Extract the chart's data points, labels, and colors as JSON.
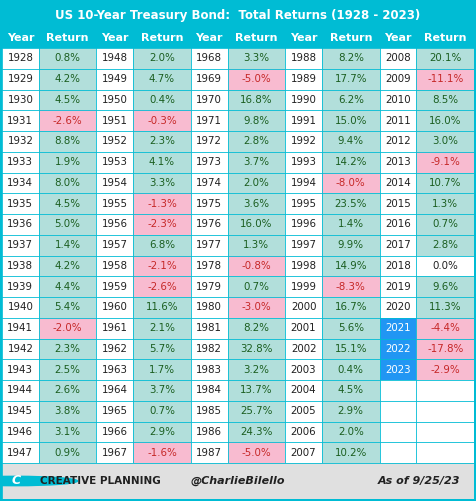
{
  "title": "US 10-Year Treasury Bond:  Total Returns (1928 - 2023)",
  "columns": [
    {
      "years": [
        1928,
        1929,
        1930,
        1931,
        1932,
        1933,
        1934,
        1935,
        1936,
        1937,
        1938,
        1939,
        1940,
        1941,
        1942,
        1943,
        1944,
        1945,
        1946,
        1947
      ],
      "returns": [
        0.8,
        4.2,
        4.5,
        -2.6,
        8.8,
        1.9,
        8.0,
        4.5,
        5.0,
        1.4,
        4.2,
        4.4,
        5.4,
        -2.0,
        2.3,
        2.5,
        2.6,
        3.8,
        3.1,
        0.9
      ]
    },
    {
      "years": [
        1948,
        1949,
        1950,
        1951,
        1952,
        1953,
        1954,
        1955,
        1956,
        1957,
        1958,
        1959,
        1960,
        1961,
        1962,
        1963,
        1964,
        1965,
        1966,
        1967
      ],
      "returns": [
        2.0,
        4.7,
        0.4,
        -0.3,
        2.3,
        4.1,
        3.3,
        -1.3,
        -2.3,
        6.8,
        -2.1,
        -2.6,
        11.6,
        2.1,
        5.7,
        1.7,
        3.7,
        0.7,
        2.9,
        -1.6
      ]
    },
    {
      "years": [
        1968,
        1969,
        1970,
        1971,
        1972,
        1973,
        1974,
        1975,
        1976,
        1977,
        1978,
        1979,
        1980,
        1981,
        1982,
        1983,
        1984,
        1985,
        1986,
        1987
      ],
      "returns": [
        3.3,
        -5.0,
        16.8,
        9.8,
        2.8,
        3.7,
        2.0,
        3.6,
        16.0,
        1.3,
        -0.8,
        0.7,
        -3.0,
        8.2,
        32.8,
        3.2,
        13.7,
        25.7,
        24.3,
        -5.0
      ]
    },
    {
      "years": [
        1988,
        1989,
        1990,
        1991,
        1992,
        1993,
        1994,
        1995,
        1996,
        1997,
        1998,
        1999,
        2000,
        2001,
        2002,
        2003,
        2004,
        2005,
        2006,
        2007
      ],
      "returns": [
        8.2,
        17.7,
        6.2,
        15.0,
        9.4,
        14.2,
        -8.0,
        23.5,
        1.4,
        9.9,
        14.9,
        -8.3,
        16.7,
        5.6,
        15.1,
        0.4,
        4.5,
        2.9,
        2.0,
        10.2
      ]
    },
    {
      "years": [
        2008,
        2009,
        2010,
        2011,
        2012,
        2013,
        2014,
        2015,
        2016,
        2017,
        2018,
        2019,
        2020,
        2021,
        2022,
        2023,
        null,
        null,
        null,
        null
      ],
      "returns": [
        20.1,
        -11.1,
        8.5,
        16.0,
        3.0,
        -9.1,
        10.7,
        1.3,
        0.7,
        2.8,
        0.0,
        9.6,
        11.3,
        -4.4,
        -17.8,
        -2.9,
        null,
        null,
        null,
        null
      ]
    }
  ],
  "header_bg": "#00bcd4",
  "header_text": "#ffffff",
  "positive_bg": "#b2dfdb",
  "negative_bg": "#f8bbd0",
  "white_bg": "#ffffff",
  "gray_bg": "#e0e0e0",
  "highlight_bg": "#2196f3",
  "highlight_text": "#ffffff",
  "positive_text": "#1b5e20",
  "negative_text": "#c62828",
  "black_text": "#212121",
  "footer_bg": "#e0e0e0",
  "cyan_border": "#00bcd4",
  "title_fontsize": 8.5,
  "header_fontsize": 8.0,
  "cell_fontsize": 7.4,
  "footer_fontsize": 7.5
}
